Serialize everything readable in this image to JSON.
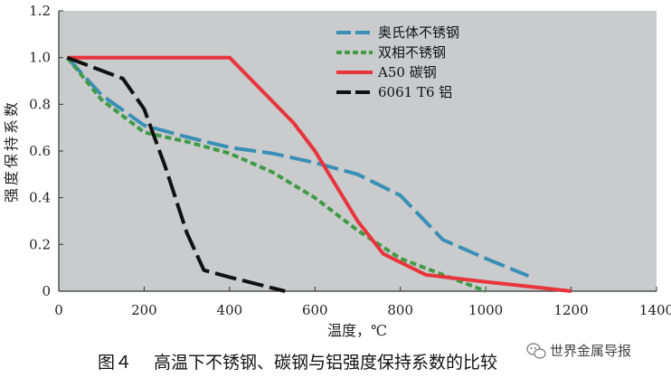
{
  "chart_data": {
    "type": "line",
    "xlabel": "温度，℃",
    "ylabel": "强度保持系数",
    "xlim": [
      0,
      1400
    ],
    "ylim": [
      0,
      1.2
    ],
    "xticks": [
      "0",
      "200",
      "400",
      "600",
      "800",
      "1000",
      "1200",
      "1400"
    ],
    "yticks": [
      "0",
      "0.2",
      "0.4",
      "0.6",
      "0.8",
      "1.0",
      "1.2"
    ],
    "grid": false,
    "background": "#c9cbcc",
    "legend_position": "top-right",
    "series": [
      {
        "name": "奥氏体不锈钢",
        "color": "#3a8fb7",
        "dash": "long-dash",
        "points": [
          [
            20,
            1.0
          ],
          [
            100,
            0.84
          ],
          [
            200,
            0.71
          ],
          [
            300,
            0.66
          ],
          [
            400,
            0.615
          ],
          [
            500,
            0.59
          ],
          [
            600,
            0.55
          ],
          [
            700,
            0.5
          ],
          [
            800,
            0.41
          ],
          [
            900,
            0.22
          ],
          [
            1000,
            0.14
          ],
          [
            1100,
            0.065
          ]
        ]
      },
      {
        "name": "双相不锈钢",
        "color": "#3f9b45",
        "dash": "short-dash",
        "points": [
          [
            20,
            1.0
          ],
          [
            100,
            0.82
          ],
          [
            200,
            0.68
          ],
          [
            300,
            0.64
          ],
          [
            400,
            0.59
          ],
          [
            500,
            0.51
          ],
          [
            600,
            0.4
          ],
          [
            700,
            0.26
          ],
          [
            800,
            0.14
          ],
          [
            900,
            0.07
          ],
          [
            1000,
            0.0
          ]
        ]
      },
      {
        "name": "A50 碳钢",
        "color": "#e8343b",
        "dash": "solid",
        "points": [
          [
            20,
            1.0
          ],
          [
            400,
            1.0
          ],
          [
            550,
            0.72
          ],
          [
            600,
            0.6
          ],
          [
            700,
            0.3
          ],
          [
            760,
            0.16
          ],
          [
            860,
            0.07
          ],
          [
            1000,
            0.04
          ],
          [
            1100,
            0.02
          ],
          [
            1200,
            0.0
          ]
        ]
      },
      {
        "name": "6061 T6 铝",
        "color": "#111111",
        "dash": "long-dash",
        "points": [
          [
            20,
            1.0
          ],
          [
            150,
            0.91
          ],
          [
            200,
            0.78
          ],
          [
            250,
            0.53
          ],
          [
            300,
            0.25
          ],
          [
            340,
            0.09
          ],
          [
            400,
            0.06
          ],
          [
            530,
            0.0
          ]
        ]
      }
    ]
  },
  "caption": {
    "figure_label": "图４",
    "title": "高温下不锈钢、碳钢与铝强度保持系数的比较"
  },
  "watermark": {
    "text": "世界金属导报"
  }
}
